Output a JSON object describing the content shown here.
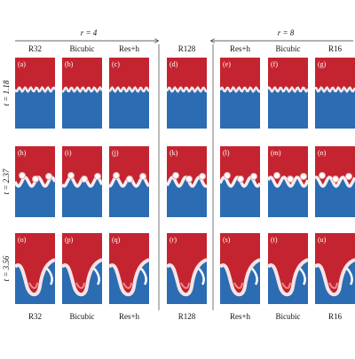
{
  "header": {
    "left_group": "r = 4",
    "right_group": "r = 8"
  },
  "columns": [
    "R32",
    "Bicubic",
    "Res+h",
    "R128",
    "Res+h",
    "Bicubic",
    "R16"
  ],
  "rows": [
    {
      "label": "t = 1.18",
      "panels": [
        "(a)",
        "(b)",
        "(c)",
        "(d)",
        "(e)",
        "(f)",
        "(g)"
      ]
    },
    {
      "label": "t = 2.37",
      "panels": [
        "(h)",
        "(i)",
        "(j)",
        "(k)",
        "(l)",
        "(m)",
        "(n)"
      ]
    },
    {
      "label": "t = 3.56",
      "panels": [
        "(o)",
        "(p)",
        "(q)",
        "(r)",
        "(s)",
        "(t)",
        "(u)"
      ]
    }
  ],
  "footer": [
    "R32",
    "Bicubic",
    "Res+h",
    "R128",
    "Res+h",
    "Bicubic",
    "R16"
  ]
}
